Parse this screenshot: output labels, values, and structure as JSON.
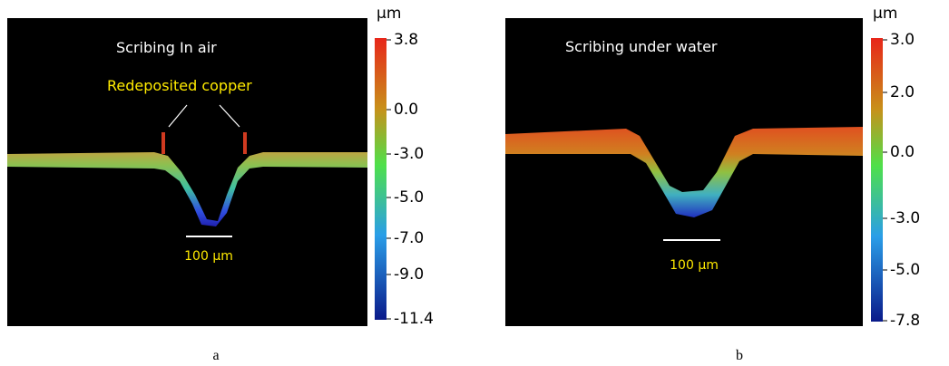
{
  "panels": [
    {
      "title": "Scribing In air",
      "annotation": "Redeposited copper",
      "scale_label": "100 μm",
      "unit": "μm",
      "colorbar_ticks": [
        "3.8",
        "0.0",
        "-3.0",
        "-5.0",
        "-7.0",
        "-9.0",
        "-11.4"
      ],
      "caption": "a"
    },
    {
      "title": "Scribing under water",
      "scale_label": "100 μm",
      "unit": "μm",
      "colorbar_ticks": [
        "3.0",
        "2.0",
        "0.0",
        "-3.0",
        "-5.0",
        "-7.8"
      ],
      "caption": "b"
    }
  ]
}
